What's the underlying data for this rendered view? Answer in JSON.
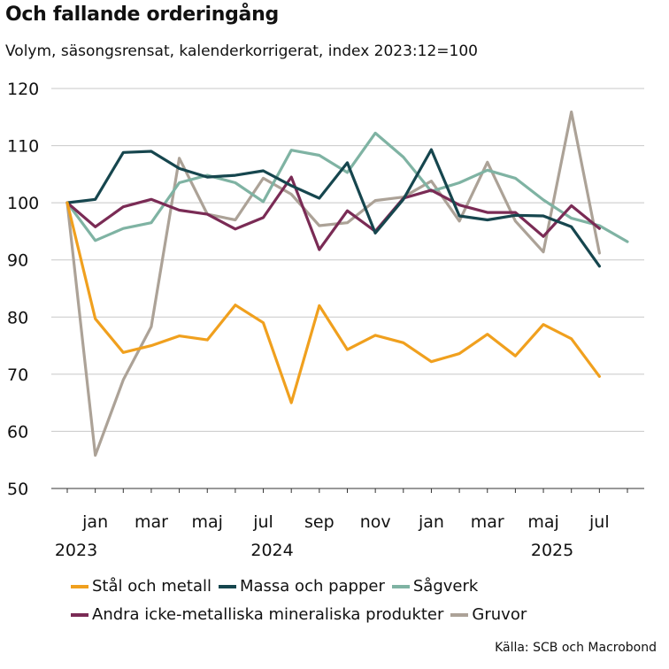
{
  "chart_data": {
    "type": "line",
    "title": "Och fallande orderingång",
    "subtitle": "Volym, säsongsrensat, kalenderkorrigerat, index 2023:12=100",
    "source": "Källa: SCB och Macrobond",
    "ylim": [
      50,
      120
    ],
    "yticks": [
      50,
      60,
      70,
      80,
      90,
      100,
      110,
      120
    ],
    "grid": true,
    "months": [
      "2023-12",
      "2024-01",
      "2024-02",
      "2024-03",
      "2024-04",
      "2024-05",
      "2024-06",
      "2024-07",
      "2024-08",
      "2024-09",
      "2024-10",
      "2024-11",
      "2024-12",
      "2025-01",
      "2025-02",
      "2025-03",
      "2025-04",
      "2025-05",
      "2025-06",
      "2025-07",
      "2025-08",
      "2025-09",
      "2025-10"
    ],
    "x_tick_labels": [
      {
        "index": 1,
        "label": "jan"
      },
      {
        "index": 3,
        "label": "mar"
      },
      {
        "index": 5,
        "label": "maj"
      },
      {
        "index": 7,
        "label": "jul"
      },
      {
        "index": 9,
        "label": "sep"
      },
      {
        "index": 11,
        "label": "nov"
      },
      {
        "index": 13,
        "label": "jan"
      },
      {
        "index": 15,
        "label": "mar"
      },
      {
        "index": 17,
        "label": "maj"
      },
      {
        "index": 19,
        "label": "jul"
      }
    ],
    "year_labels": [
      {
        "index": 0,
        "label": "2023"
      },
      {
        "index": 7,
        "label": "2024"
      },
      {
        "index": 17,
        "label": "2025"
      }
    ],
    "series": [
      {
        "name": "Gruvor",
        "color": "#aca297",
        "values": [
          100,
          55.8,
          69,
          78.3,
          107.8,
          98,
          97,
          104.3,
          101.5,
          96,
          96.5,
          100.4,
          101,
          103.8,
          96.8,
          107.1,
          96.8,
          91.4,
          115.9,
          91.2
        ]
      },
      {
        "name": "Sågverk",
        "color": "#7fb3a3",
        "values": [
          100,
          93.4,
          95.5,
          96.5,
          103.5,
          104.8,
          103.5,
          100.2,
          109.2,
          108.3,
          105.3,
          112.2,
          108,
          102,
          103.5,
          105.7,
          104.3,
          100.5,
          97.3,
          96,
          93.2
        ]
      },
      {
        "name": "Andra icke-metalliska mineraliska produkter",
        "color": "#7a2b55",
        "values": [
          100,
          95.8,
          99.3,
          100.6,
          98.7,
          98,
          95.4,
          97.4,
          104.5,
          91.8,
          98.6,
          95,
          100.8,
          102.2,
          99.6,
          98.3,
          98.3,
          94.1,
          99.5,
          95.5
        ]
      },
      {
        "name": "Massa och papper",
        "color": "#16464e",
        "values": [
          100,
          100.6,
          108.8,
          109,
          106,
          104.5,
          104.8,
          105.6,
          103,
          100.8,
          107,
          94.7,
          100.6,
          109.3,
          97.7,
          97,
          97.8,
          97.7,
          95.8,
          88.9
        ]
      },
      {
        "name": "Stål och metall",
        "color": "#f0a01e",
        "values": [
          100,
          79.7,
          73.8,
          75,
          76.7,
          76,
          82.1,
          79,
          65,
          82,
          74.3,
          76.8,
          75.5,
          72.2,
          73.6,
          77,
          73.2,
          78.7,
          76.2,
          69.6
        ]
      }
    ],
    "legend": [
      [
        "Stål och metall",
        "Massa och papper",
        "Sågverk"
      ],
      [
        "Andra icke-metalliska mineraliska produkter",
        "Gruvor"
      ]
    ]
  }
}
